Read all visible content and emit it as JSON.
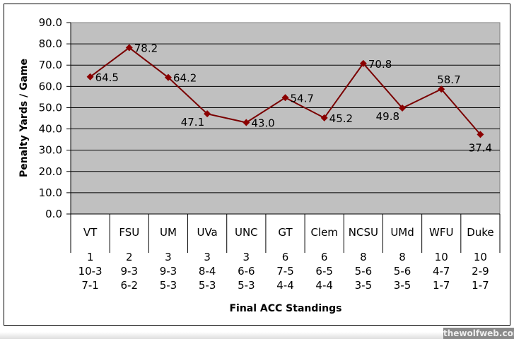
{
  "chart_data": {
    "type": "line",
    "title": "",
    "ylabel": "Penalty Yards / Game",
    "xlabel": "Final ACC Standings",
    "ylim": [
      0,
      90
    ],
    "yticks": [
      "0.0",
      "10.0",
      "20.0",
      "30.0",
      "40.0",
      "50.0",
      "60.0",
      "70.0",
      "80.0",
      "90.0"
    ],
    "grid": true,
    "categories": [
      {
        "team": "VT",
        "rank": "1",
        "overall": "10-3",
        "acc": "7-1"
      },
      {
        "team": "FSU",
        "rank": "2",
        "overall": "9-3",
        "acc": "6-2"
      },
      {
        "team": "UM",
        "rank": "3",
        "overall": "9-3",
        "acc": "5-3"
      },
      {
        "team": "UVa",
        "rank": "3",
        "overall": "8-4",
        "acc": "5-3"
      },
      {
        "team": "UNC",
        "rank": "3",
        "overall": "6-6",
        "acc": "5-3"
      },
      {
        "team": "GT",
        "rank": "6",
        "overall": "7-5",
        "acc": "4-4"
      },
      {
        "team": "Clem",
        "rank": "6",
        "overall": "6-5",
        "acc": "4-4"
      },
      {
        "team": "NCSU",
        "rank": "8",
        "overall": "5-6",
        "acc": "3-5"
      },
      {
        "team": "UMd",
        "rank": "8",
        "overall": "5-6",
        "acc": "3-5"
      },
      {
        "team": "WFU",
        "rank": "10",
        "overall": "4-7",
        "acc": "1-7"
      },
      {
        "team": "Duke",
        "rank": "10",
        "overall": "2-9",
        "acc": "1-7"
      }
    ],
    "series": [
      {
        "name": "Penalty Yards / Game",
        "color": "#8b0000",
        "values": [
          64.5,
          78.2,
          64.2,
          47.1,
          43.0,
          54.7,
          45.2,
          70.8,
          49.8,
          58.7,
          37.4
        ],
        "labels": [
          "64.5",
          "78.2",
          "64.2",
          "47.1",
          "43.0",
          "54.7",
          "45.2",
          "70.8",
          "49.8",
          "58.7",
          "37.4"
        ],
        "label_placement": [
          "right",
          "right",
          "right",
          "left-below",
          "right",
          "right",
          "right",
          "right",
          "left-below",
          "above",
          "below"
        ]
      }
    ]
  },
  "watermark": "thewolfweb.com"
}
